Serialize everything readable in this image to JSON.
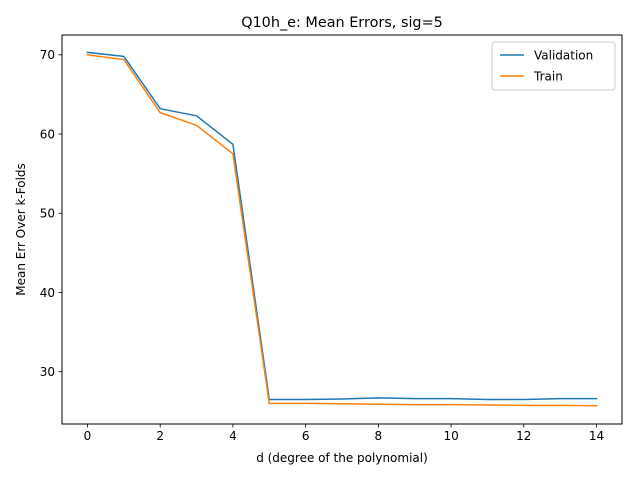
{
  "chart_data": {
    "type": "line",
    "title": "Q10h_e: Mean Errors, sig=5",
    "xlabel": "d (degree of the polynomial)",
    "ylabel": "Mean Err Over k-Folds",
    "xlim": [
      -0.7,
      14.7
    ],
    "ylim": [
      23.4,
      72.5
    ],
    "xticks": [
      0,
      2,
      4,
      6,
      8,
      10,
      12,
      14
    ],
    "yticks": [
      30,
      40,
      50,
      60,
      70
    ],
    "x": [
      0,
      1,
      2,
      3,
      4,
      5,
      6,
      7,
      8,
      9,
      10,
      11,
      12,
      13,
      14
    ],
    "legend_position": "top-right",
    "series": [
      {
        "name": "Validation",
        "color": "#1f77b4",
        "values": [
          70.3,
          69.8,
          63.2,
          62.3,
          58.7,
          26.5,
          26.5,
          26.55,
          26.7,
          26.6,
          26.6,
          26.5,
          26.5,
          26.6,
          26.6
        ]
      },
      {
        "name": "Train",
        "color": "#ff7f0e",
        "values": [
          70.0,
          69.4,
          62.7,
          61.1,
          57.5,
          26.0,
          26.0,
          25.95,
          25.9,
          25.85,
          25.85,
          25.8,
          25.75,
          25.75,
          25.7
        ]
      }
    ]
  }
}
